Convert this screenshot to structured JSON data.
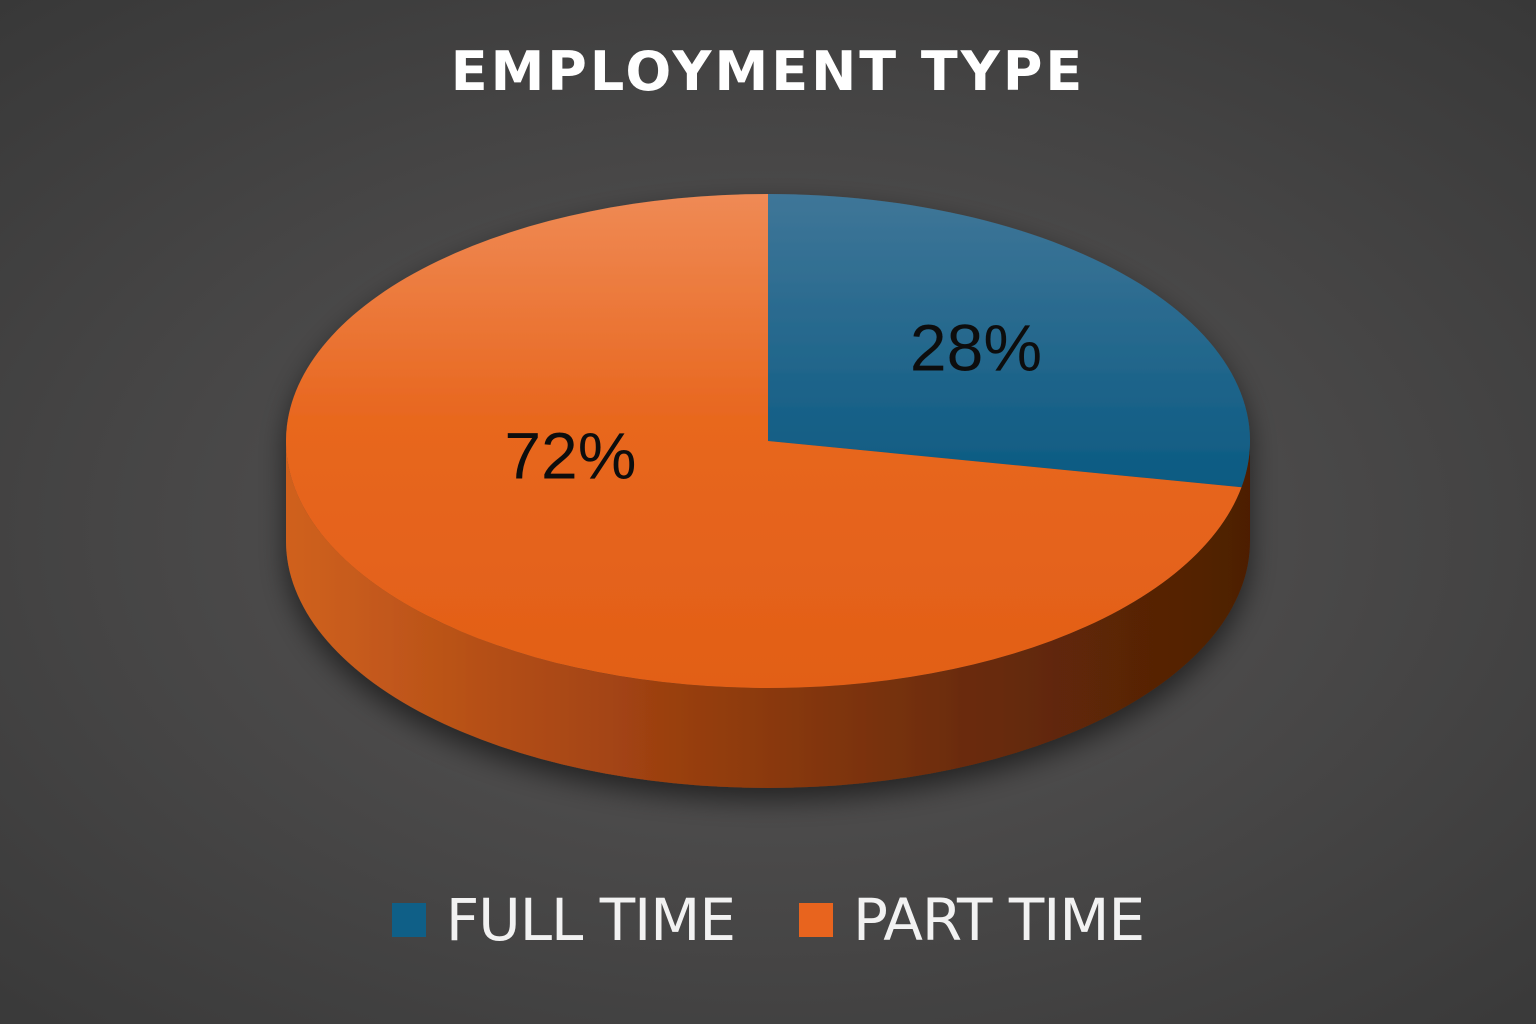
{
  "chart_data": {
    "type": "pie",
    "title": "EMPLOYMENT TYPE",
    "slices": [
      {
        "name": "FULL TIME",
        "value": 28,
        "label": "28%",
        "color": "#0f5f87"
      },
      {
        "name": "PART TIME",
        "value": 72,
        "label": "72%",
        "color": "#e8641e"
      }
    ],
    "legend_position": "bottom",
    "three_d": true
  }
}
